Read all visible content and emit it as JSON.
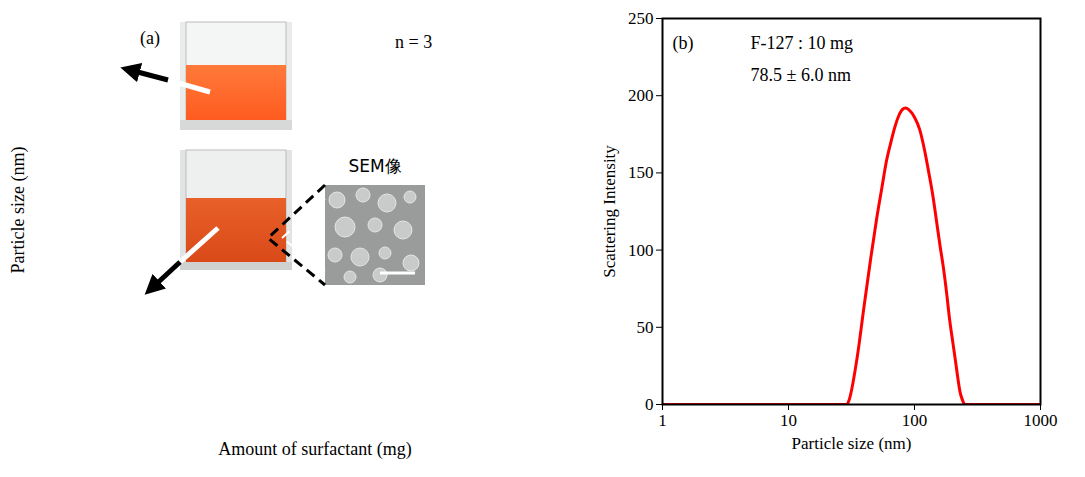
{
  "chart_data": [
    {
      "type": "image",
      "title": "(a)",
      "x_label": "Amount of surfactant (mg)",
      "y_label": "Particle size (nm)",
      "annotations": [
        "n = 3",
        "SEM像"
      ],
      "tick_labels": false
    },
    {
      "type": "line",
      "title": "(b)",
      "annotations": [
        "F-127 : 10 mg",
        "78.5 ± 6.0 nm"
      ],
      "x_label": "Particle size (nm)",
      "y_label": "Scattering Intensity",
      "x": [
        1,
        10,
        29,
        30,
        35,
        40,
        45,
        50,
        55,
        60,
        65,
        70,
        75,
        80,
        85,
        90,
        100,
        110,
        120,
        130,
        140,
        150,
        160,
        170,
        180,
        190,
        200,
        210,
        220,
        230,
        240,
        250,
        1000
      ],
      "values": [
        0,
        0,
        0,
        2,
        30,
        65,
        95,
        120,
        140,
        158,
        170,
        180,
        187,
        191,
        192,
        191,
        186,
        178,
        165,
        150,
        135,
        118,
        102,
        88,
        72,
        55,
        42,
        30,
        18,
        8,
        3,
        0,
        0
      ],
      "color": "#ff0000",
      "log": "x",
      "xlim": [
        1,
        1000
      ],
      "xticks": [
        1,
        10,
        100,
        1000
      ],
      "ylim": [
        0,
        250
      ],
      "yticks": [
        0,
        50,
        100,
        150,
        200,
        250
      ],
      "grid": false
    }
  ]
}
